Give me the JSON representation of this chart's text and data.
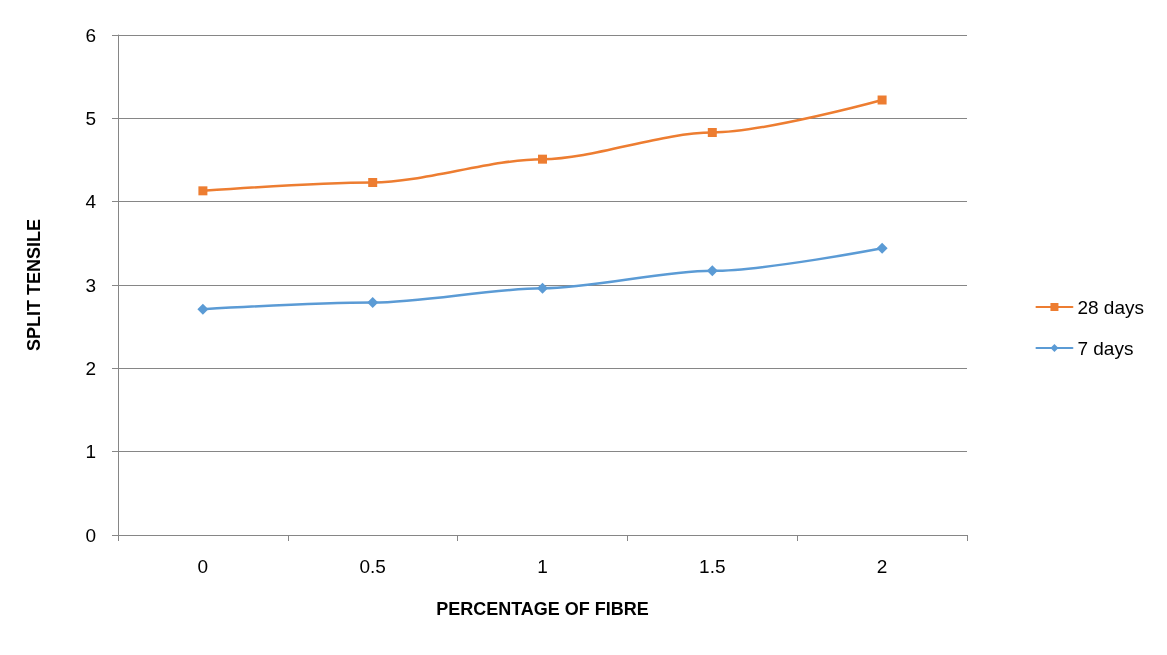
{
  "chart_data": {
    "type": "line",
    "xlabel": "PERCENTAGE OF FIBRE",
    "ylabel": "SPLIT TENSILE",
    "categories": [
      "0",
      "0.5",
      "1",
      "1.5",
      "2"
    ],
    "series": [
      {
        "name": "28 days",
        "color": "#ed7d31",
        "marker": "square",
        "values": [
          4.13,
          4.23,
          4.51,
          4.83,
          5.22
        ]
      },
      {
        "name": "7 days",
        "color": "#5b9bd5",
        "marker": "diamond",
        "values": [
          2.71,
          2.79,
          2.96,
          3.17,
          3.44
        ]
      }
    ],
    "ylim": [
      0,
      6
    ],
    "yticks": [
      0,
      1,
      2,
      3,
      4,
      5,
      6
    ],
    "grid": "y",
    "legend": "right",
    "line_style": "solid"
  }
}
